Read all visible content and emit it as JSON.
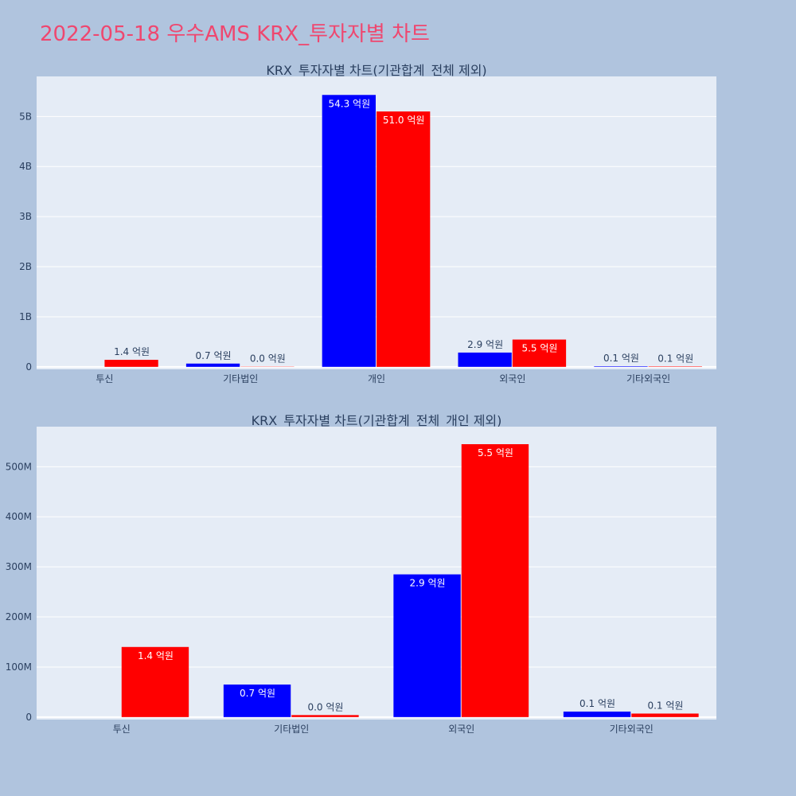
{
  "page_title": "2022-05-18 우수AMS KRX_투자자별 차트",
  "chart_data": [
    {
      "type": "bar",
      "title": "KRX_투자자별 차트(기관합계_전체 제외)",
      "categories": [
        "투신",
        "기타법인",
        "개인",
        "외국인",
        "기타외국인"
      ],
      "ylim": [
        -50000000,
        5800000000
      ],
      "ytick_values": [
        0,
        1000000000,
        2000000000,
        3000000000,
        4000000000,
        5000000000
      ],
      "ytick_labels": [
        "0",
        "1B",
        "2B",
        "3B",
        "4B",
        "5B"
      ],
      "grid": true,
      "series": [
        {
          "color": "#0000ff",
          "values": [
            0,
            65000000,
            5430000000,
            285000000,
            10000000
          ],
          "labels": [
            "",
            "0.7 억원",
            "54.3 억원",
            "2.9 억원",
            "0.1 억원"
          ]
        },
        {
          "color": "#ff0000",
          "values": [
            140000000,
            4000000,
            5100000000,
            545000000,
            8000000
          ],
          "labels": [
            "1.4 억원",
            "0.0 억원",
            "51.0 억원",
            "5.5 억원",
            "0.1 억원"
          ]
        }
      ]
    },
    {
      "type": "bar",
      "title": "KRX_투자자별 차트(기관합계_전체_개인 제외)",
      "categories": [
        "투신",
        "기타법인",
        "외국인",
        "기타외국인"
      ],
      "ylim": [
        -5000000,
        580000000
      ],
      "ytick_values": [
        0,
        100000000,
        200000000,
        300000000,
        400000000,
        500000000
      ],
      "ytick_labels": [
        "0",
        "100M",
        "200M",
        "300M",
        "400M",
        "500M"
      ],
      "grid": true,
      "series": [
        {
          "color": "#0000ff",
          "values": [
            0,
            65000000,
            285000000,
            11000000
          ],
          "labels": [
            "",
            "0.7 억원",
            "2.9 억원",
            "0.1 억원"
          ]
        },
        {
          "color": "#ff0000",
          "values": [
            140000000,
            4000000,
            545000000,
            7000000
          ],
          "labels": [
            "1.4 억원",
            "0.0 억원",
            "5.5 억원",
            "0.1 억원"
          ]
        }
      ]
    }
  ]
}
